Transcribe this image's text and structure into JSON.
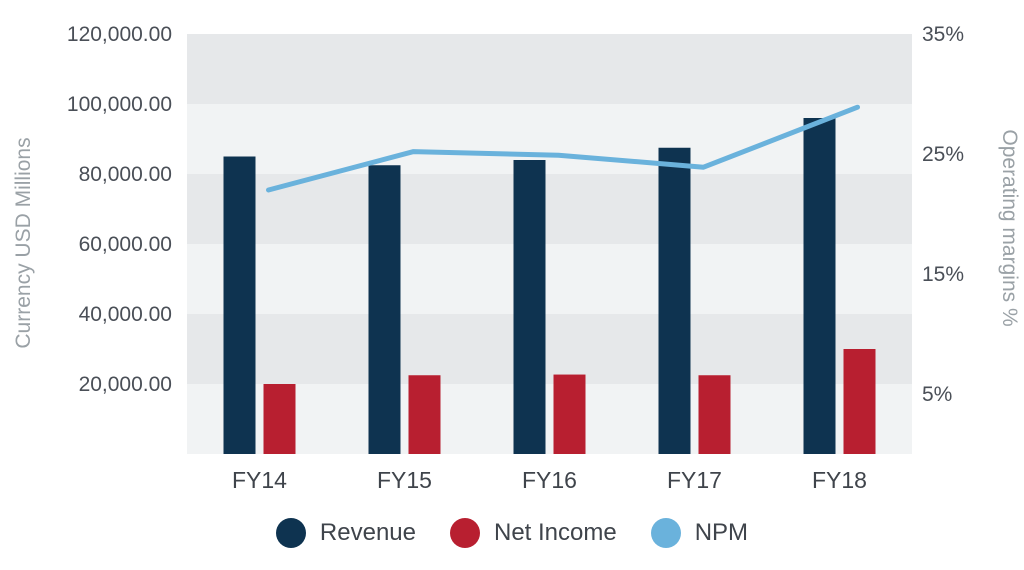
{
  "chart_data": {
    "type": "bar",
    "categories": [
      "FY14",
      "FY15",
      "FY16",
      "FY17",
      "FY18"
    ],
    "series": [
      {
        "name": "Revenue",
        "axis": "left",
        "kind": "bar",
        "color": "#0e3350",
        "values": [
          85000,
          82500,
          84000,
          87500,
          96000
        ]
      },
      {
        "name": "Net Income",
        "axis": "left",
        "kind": "bar",
        "color": "#b81f30",
        "values": [
          20000,
          22500,
          22700,
          22500,
          30000
        ]
      },
      {
        "name": "NPM",
        "axis": "right",
        "kind": "line",
        "color": "#6ab2dc",
        "values": [
          22.0,
          25.2,
          24.9,
          23.9,
          28.9
        ]
      }
    ],
    "ylabel": "Currency USD Millions",
    "y2label": "Operating margins %",
    "ylim": [
      0,
      120000
    ],
    "y2lim": [
      0,
      35
    ],
    "yticks": [
      {
        "value": 20000,
        "label": "20,000.00"
      },
      {
        "value": 40000,
        "label": "40,000.00"
      },
      {
        "value": 60000,
        "label": "60,000.00"
      },
      {
        "value": 80000,
        "label": "80,000.00"
      },
      {
        "value": 100000,
        "label": "100,000.00"
      },
      {
        "value": 120000,
        "label": "120,000.00"
      }
    ],
    "y2ticks": [
      {
        "value": 5,
        "label": "5%"
      },
      {
        "value": 15,
        "label": "15%"
      },
      {
        "value": 25,
        "label": "25%"
      },
      {
        "value": 35,
        "label": "35%"
      }
    ],
    "grid": "alternating horizontal bands",
    "band_colors": [
      "#e6e8ea",
      "#f1f3f4"
    ],
    "legend": "bottom-center"
  }
}
